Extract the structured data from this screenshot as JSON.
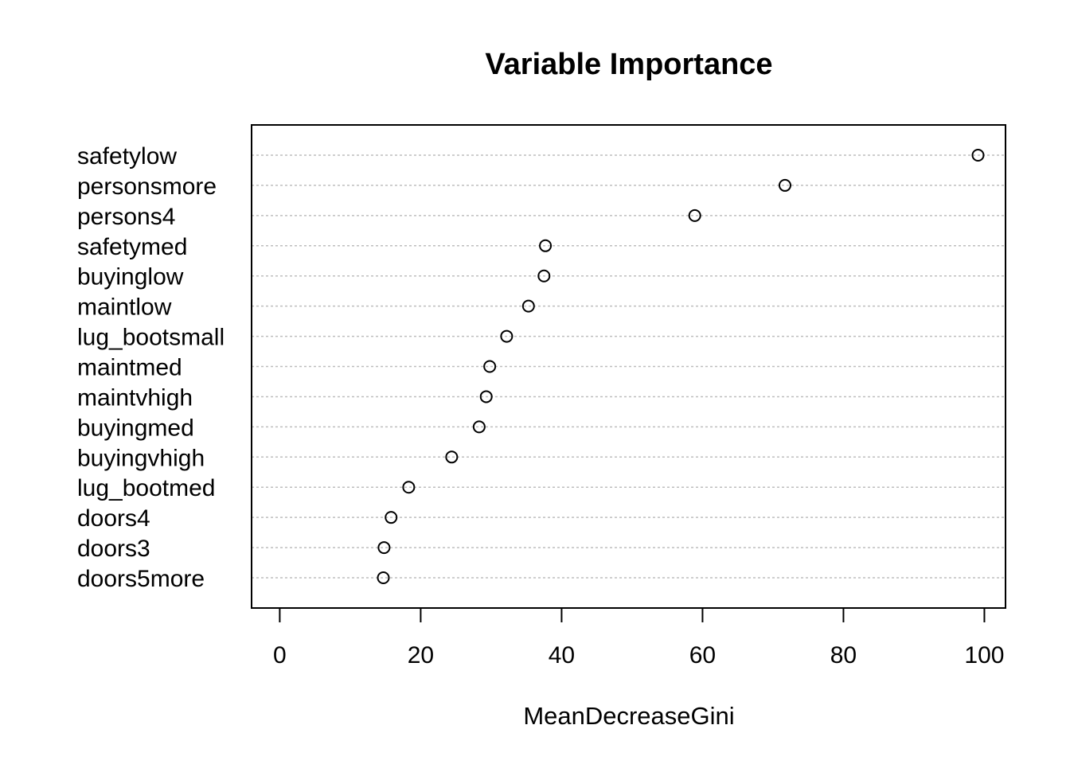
{
  "chart_data": {
    "type": "scatter",
    "subtype": "dotchart",
    "title": "Variable Importance",
    "xlabel": "MeanDecreaseGini",
    "ylabel": "",
    "xlim": [
      -4,
      103
    ],
    "xticks": [
      0,
      20,
      40,
      60,
      80,
      100
    ],
    "xtick_labels": [
      "0",
      "20",
      "40",
      "60",
      "80",
      "100"
    ],
    "grid": "horizontal-dotted",
    "categories": [
      "safetylow",
      "personsmore",
      "persons4",
      "safetymed",
      "buyinglow",
      "maintlow",
      "lug_bootsmall",
      "maintmed",
      "maintvhigh",
      "buyingmed",
      "buyingvhigh",
      "lug_bootmed",
      "doors4",
      "doors3",
      "doors5more"
    ],
    "values": [
      99.1,
      71.7,
      58.9,
      37.7,
      37.5,
      35.3,
      32.2,
      29.8,
      29.3,
      28.3,
      24.4,
      18.3,
      15.8,
      14.8,
      14.7
    ],
    "marker_color": "#000000",
    "grid_color": "#bebebe"
  }
}
